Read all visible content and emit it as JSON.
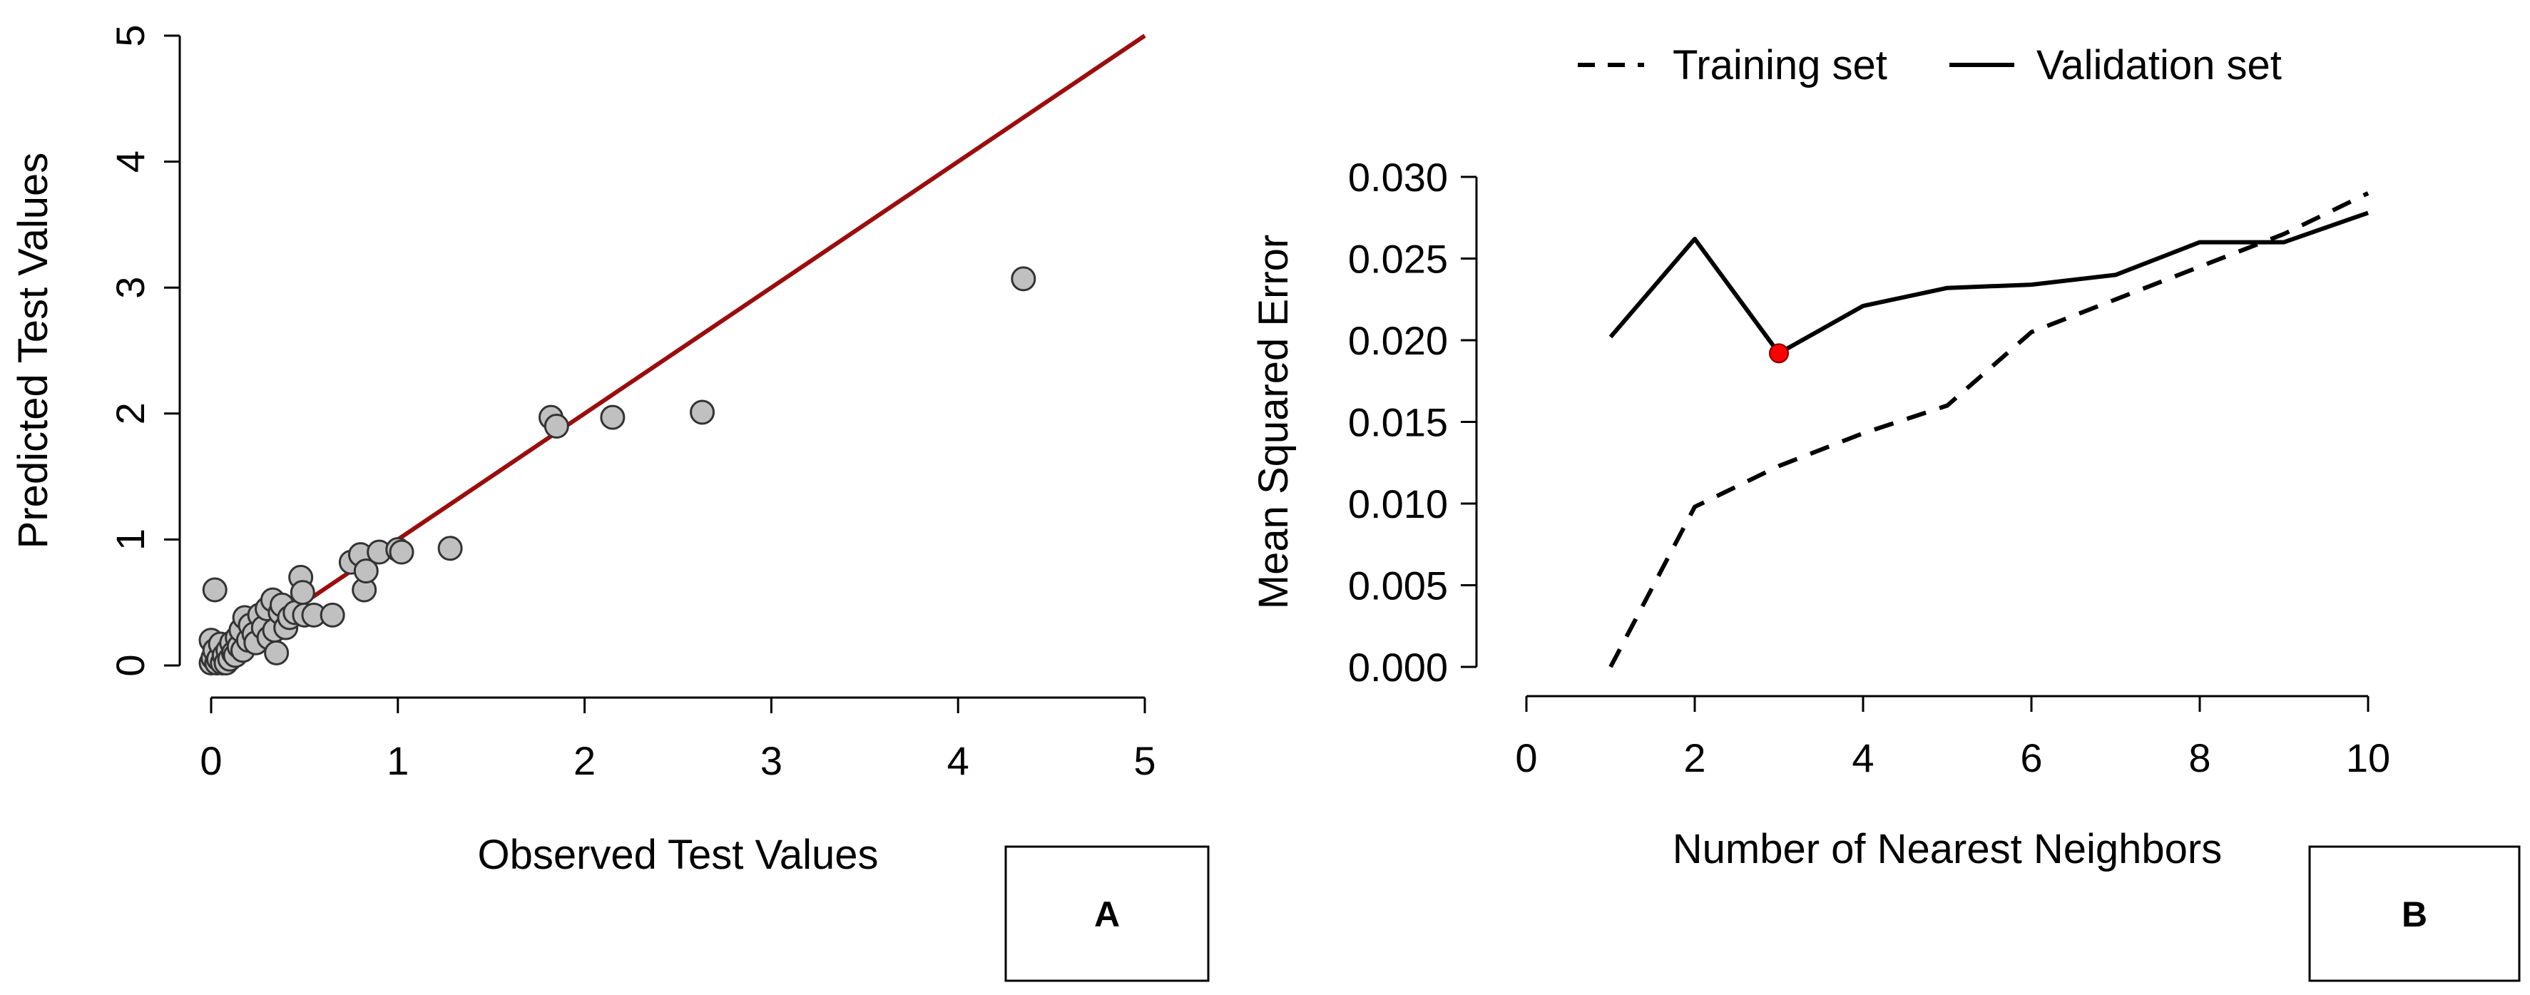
{
  "chart_data": [
    {
      "type": "scatter",
      "panel_label": "A",
      "title": "",
      "xlabel": "Observed Test Values",
      "ylabel": "Predicted Test Values",
      "xlim": [
        0,
        5
      ],
      "ylim": [
        0,
        5
      ],
      "xticks": [
        "0",
        "1",
        "2",
        "3",
        "4",
        "5"
      ],
      "yticks": [
        "0",
        "1",
        "2",
        "3",
        "4",
        "5"
      ],
      "grid": false,
      "point_color": "#c0c0c0",
      "reference_line": {
        "from": [
          0,
          0
        ],
        "to": [
          5,
          5
        ],
        "color": "#9b0d0d"
      },
      "points": [
        [
          0.02,
          0.6
        ],
        [
          0.0,
          0.02
        ],
        [
          0.0,
          0.2
        ],
        [
          0.01,
          0.06
        ],
        [
          0.02,
          0.12
        ],
        [
          0.03,
          0.02
        ],
        [
          0.04,
          0.05
        ],
        [
          0.05,
          0.17
        ],
        [
          0.06,
          0.02
        ],
        [
          0.07,
          0.08
        ],
        [
          0.08,
          0.02
        ],
        [
          0.09,
          0.12
        ],
        [
          0.1,
          0.05
        ],
        [
          0.11,
          0.18
        ],
        [
          0.12,
          0.1
        ],
        [
          0.13,
          0.08
        ],
        [
          0.14,
          0.22
        ],
        [
          0.15,
          0.15
        ],
        [
          0.16,
          0.28
        ],
        [
          0.17,
          0.12
        ],
        [
          0.18,
          0.38
        ],
        [
          0.2,
          0.2
        ],
        [
          0.21,
          0.32
        ],
        [
          0.23,
          0.25
        ],
        [
          0.24,
          0.18
        ],
        [
          0.26,
          0.4
        ],
        [
          0.28,
          0.3
        ],
        [
          0.3,
          0.45
        ],
        [
          0.31,
          0.22
        ],
        [
          0.33,
          0.52
        ],
        [
          0.34,
          0.28
        ],
        [
          0.35,
          0.1
        ],
        [
          0.37,
          0.42
        ],
        [
          0.38,
          0.48
        ],
        [
          0.4,
          0.3
        ],
        [
          0.42,
          0.38
        ],
        [
          0.45,
          0.42
        ],
        [
          0.48,
          0.7
        ],
        [
          0.49,
          0.58
        ],
        [
          0.5,
          0.4
        ],
        [
          0.55,
          0.4
        ],
        [
          0.65,
          0.4
        ],
        [
          0.75,
          0.82
        ],
        [
          0.8,
          0.88
        ],
        [
          0.82,
          0.6
        ],
        [
          0.83,
          0.75
        ],
        [
          0.9,
          0.9
        ],
        [
          1.0,
          0.92
        ],
        [
          1.02,
          0.9
        ],
        [
          1.28,
          0.93
        ],
        [
          1.82,
          1.97
        ],
        [
          1.85,
          1.9
        ],
        [
          2.15,
          1.97
        ],
        [
          2.63,
          2.01
        ],
        [
          4.35,
          3.07
        ]
      ]
    },
    {
      "type": "line",
      "panel_label": "B",
      "title": "",
      "xlabel": "Number of Nearest Neighbors",
      "ylabel": "Mean Squared Error",
      "xlim": [
        0,
        10
      ],
      "ylim": [
        0,
        0.03
      ],
      "xticks": [
        "0",
        "2",
        "4",
        "6",
        "8",
        "10"
      ],
      "yticks": [
        "0.000",
        "0.005",
        "0.010",
        "0.015",
        "0.020",
        "0.025",
        "0.030"
      ],
      "grid": false,
      "legend_position": "top",
      "x": [
        1,
        2,
        3,
        4,
        5,
        6,
        7,
        8,
        9,
        10
      ],
      "series": [
        {
          "name": "Training set",
          "style": "dashed",
          "values": [
            0.0,
            0.0098,
            0.0123,
            0.0143,
            0.016,
            0.0205,
            0.0225,
            0.0245,
            0.0265,
            0.029
          ]
        },
        {
          "name": "Validation set",
          "style": "solid",
          "values": [
            0.0202,
            0.0262,
            0.0192,
            0.0221,
            0.0232,
            0.0234,
            0.024,
            0.026,
            0.026,
            0.0278
          ]
        }
      ],
      "highlight_point": {
        "x": 3,
        "y": 0.0192,
        "color": "#ff0000"
      }
    }
  ]
}
